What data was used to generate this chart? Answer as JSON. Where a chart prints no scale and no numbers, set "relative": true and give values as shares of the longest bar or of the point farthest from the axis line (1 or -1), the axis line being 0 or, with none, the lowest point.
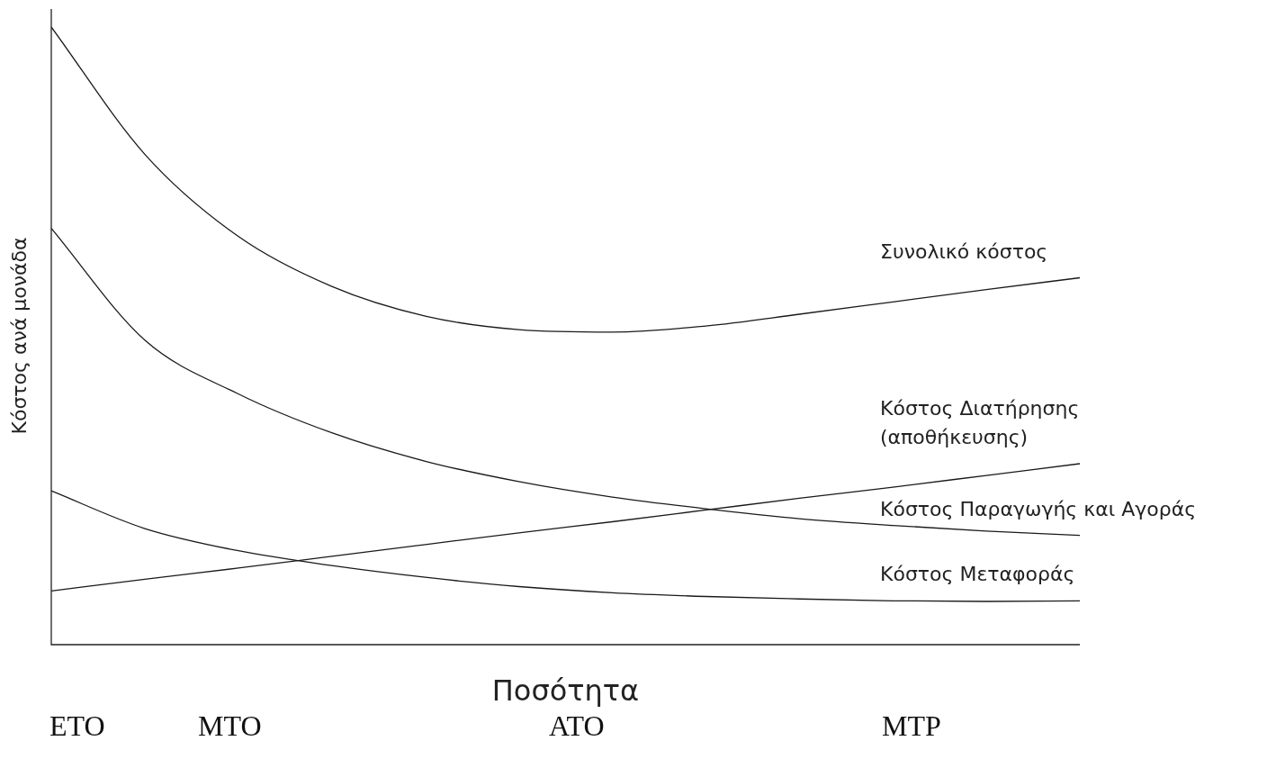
{
  "chart_data": {
    "type": "line",
    "relative": true,
    "xlabel": "Ποσότητα",
    "ylabel": "Κόστος ανά μονάδα",
    "legend": false,
    "marker": "none",
    "line_style": "solid",
    "categories": [
      null,
      null,
      null,
      null,
      null,
      null,
      null,
      null,
      null,
      null,
      null,
      null
    ],
    "series": [
      {
        "name": "Συνολικό κόστος",
        "color": "#1a1a1a",
        "values": [
          1.0,
          0.794,
          0.661,
          0.58,
          0.532,
          0.51,
          0.506,
          0.516,
          0.535,
          0.555,
          0.575,
          0.594
        ]
      },
      {
        "name": "Κόστος Διατήρησης\n(αποθήκευσης)",
        "color": "#1a1a1a",
        "values": [
          0.087,
          0.106,
          0.124,
          0.143,
          0.162,
          0.181,
          0.199,
          0.218,
          0.237,
          0.255,
          0.274,
          0.293
        ]
      },
      {
        "name": "Κόστος Παραγωγής και Αγοράς",
        "color": "#1a1a1a",
        "values": [
          0.674,
          0.493,
          0.406,
          0.343,
          0.297,
          0.264,
          0.239,
          0.22,
          0.204,
          0.193,
          0.184,
          0.177
        ]
      },
      {
        "name": "Κόστος Μεταφοράς",
        "color": "#1a1a1a",
        "values": [
          0.249,
          0.188,
          0.152,
          0.128,
          0.109,
          0.094,
          0.084,
          0.078,
          0.074,
          0.071,
          0.07,
          0.071
        ]
      }
    ],
    "annotations": [
      "ETO",
      "MTO",
      "ATO",
      "MTP"
    ]
  }
}
